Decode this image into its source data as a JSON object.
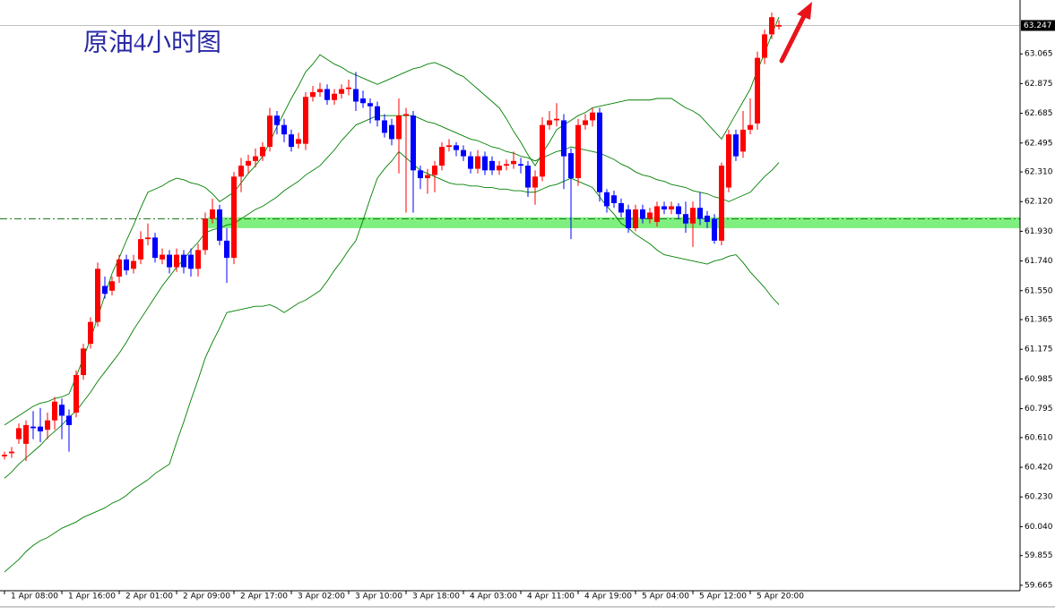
{
  "chart_data": {
    "type": "candlestick",
    "title": "原油4小时图",
    "categories": [
      "1 Apr 08:00",
      null,
      null,
      null,
      null,
      null,
      null,
      null,
      "1 Apr 16:00",
      null,
      null,
      null,
      null,
      null,
      null,
      null,
      "2 Apr 01:00",
      null,
      null,
      null,
      null,
      null,
      null,
      null,
      "2 Apr 09:00",
      null,
      null,
      null,
      null,
      null,
      null,
      null,
      "2 Apr 17:00",
      null,
      null,
      null,
      null,
      null,
      null,
      null,
      "3 Apr 02:00",
      null,
      null,
      null,
      null,
      null,
      null,
      null,
      "3 Apr 10:00",
      null,
      null,
      null,
      null,
      null,
      null,
      null,
      "3 Apr 18:00",
      null,
      null,
      null,
      null,
      null,
      null,
      null,
      "4 Apr 03:00",
      null,
      null,
      null,
      null,
      null,
      null,
      null,
      "4 Apr 11:00",
      null,
      null,
      null,
      null,
      null,
      null,
      null,
      "4 Apr 19:00",
      null,
      null,
      null,
      null,
      null,
      null,
      null,
      "5 Apr 04:00",
      null,
      null,
      null,
      null,
      null,
      null,
      null,
      "5 Apr 12:00",
      null,
      null,
      null,
      null,
      null,
      null,
      null,
      "5 Apr 20:00",
      null,
      null,
      null,
      null
    ],
    "open": [
      60.49,
      60.51,
      60.6,
      60.57,
      60.68,
      60.68,
      60.66,
      60.72,
      60.82,
      60.75,
      60.77,
      61.01,
      61.21,
      61.35,
      61.58,
      61.55,
      61.64,
      61.75,
      61.69,
      61.75,
      61.88,
      61.89,
      61.75,
      61.78,
      61.7,
      61.78,
      61.78,
      61.69,
      61.81,
      62.01,
      62.07,
      61.87,
      61.76,
      62.28,
      62.35,
      62.38,
      62.41,
      62.47,
      62.67,
      62.61,
      62.55,
      62.49,
      62.49,
      62.79,
      62.82,
      62.84,
      62.77,
      62.81,
      62.84,
      62.84,
      62.78,
      62.75,
      62.73,
      62.64,
      62.61,
      62.52,
      62.67,
      62.67,
      62.32,
      62.27,
      62.29,
      62.35,
      62.47,
      62.48,
      62.45,
      62.41,
      62.33,
      62.41,
      62.38,
      62.32,
      62.35,
      62.36,
      62.36,
      62.35,
      62.21,
      62.28,
      62.61,
      62.64,
      62.64,
      62.43,
      62.27,
      62.61,
      62.64,
      62.69,
      62.18,
      62.16,
      62.11,
      62.07,
      61.95,
      62.07,
      62.01,
      61.99,
      62.09,
      62.07,
      62.09,
      62.04,
      61.98,
      62.08,
      62.03,
      62.01,
      61.87,
      62.21,
      62.55,
      62.44,
      62.58,
      62.62,
      63.04,
      63.19,
      63.24
    ],
    "high": [
      60.52,
      60.55,
      60.7,
      60.72,
      60.78,
      60.8,
      60.77,
      60.87,
      60.86,
      60.79,
      61.04,
      61.21,
      61.38,
      61.73,
      61.64,
      61.64,
      61.78,
      61.78,
      61.78,
      61.93,
      61.98,
      61.92,
      61.82,
      61.81,
      61.82,
      61.81,
      61.82,
      61.85,
      62.05,
      62.14,
      62.1,
      61.95,
      62.31,
      62.4,
      62.42,
      62.46,
      62.5,
      62.72,
      62.7,
      62.65,
      62.58,
      62.56,
      62.82,
      62.86,
      62.88,
      62.87,
      62.84,
      62.87,
      62.9,
      62.95,
      62.83,
      62.78,
      62.76,
      62.68,
      62.65,
      62.78,
      62.72,
      62.7,
      62.35,
      62.33,
      62.38,
      62.5,
      62.52,
      62.5,
      62.48,
      62.44,
      62.45,
      62.44,
      62.41,
      62.38,
      62.39,
      62.44,
      62.4,
      62.38,
      62.32,
      62.66,
      62.7,
      62.75,
      62.68,
      62.46,
      62.65,
      62.68,
      62.72,
      62.72,
      62.2,
      62.19,
      62.14,
      62.1,
      62.1,
      62.1,
      62.08,
      62.12,
      62.12,
      62.12,
      62.11,
      62.12,
      62.12,
      62.18,
      62.06,
      62.04,
      62.37,
      62.58,
      62.58,
      62.7,
      62.78,
      63.08,
      63.22,
      63.33,
      63.28
    ],
    "low": [
      60.47,
      60.48,
      60.57,
      60.46,
      60.6,
      60.58,
      60.6,
      60.66,
      60.6,
      60.52,
      60.74,
      60.98,
      61.18,
      61.32,
      61.5,
      61.52,
      61.6,
      61.65,
      61.66,
      61.72,
      61.84,
      61.73,
      61.72,
      61.66,
      61.67,
      61.66,
      61.64,
      61.64,
      61.78,
      61.98,
      61.84,
      61.6,
      61.72,
      62.18,
      62.3,
      62.34,
      62.38,
      62.44,
      62.55,
      62.5,
      62.44,
      62.46,
      62.45,
      62.76,
      62.79,
      62.74,
      62.74,
      62.78,
      62.8,
      62.7,
      62.72,
      62.62,
      62.6,
      62.53,
      62.48,
      62.3,
      62.05,
      62.05,
      62.2,
      62.17,
      62.18,
      62.32,
      62.44,
      62.41,
      62.38,
      62.3,
      62.3,
      62.29,
      62.29,
      62.29,
      62.32,
      62.33,
      62.3,
      62.15,
      62.1,
      62.25,
      62.58,
      62.6,
      62.2,
      61.88,
      62.22,
      62.58,
      62.6,
      62.12,
      62.05,
      62.08,
      62.02,
      61.92,
      61.93,
      61.98,
      61.98,
      61.96,
      62.04,
      62.04,
      62.01,
      61.92,
      61.83,
      61.97,
      61.95,
      61.85,
      61.84,
      62.18,
      62.38,
      62.4,
      62.55,
      62.58,
      63.0,
      63.16,
      63.22
    ],
    "close": [
      60.5,
      60.52,
      60.67,
      60.69,
      60.67,
      60.65,
      60.72,
      60.84,
      60.75,
      60.69,
      61.01,
      61.18,
      61.35,
      61.69,
      61.53,
      61.61,
      61.75,
      61.68,
      61.74,
      61.88,
      61.89,
      61.76,
      61.78,
      61.7,
      61.78,
      61.7,
      61.69,
      61.81,
      62.01,
      62.07,
      61.87,
      61.76,
      62.28,
      62.35,
      62.38,
      62.41,
      62.47,
      62.67,
      62.61,
      62.55,
      62.47,
      62.52,
      62.79,
      62.82,
      62.84,
      62.77,
      62.81,
      62.84,
      62.85,
      62.76,
      62.75,
      62.73,
      62.64,
      62.56,
      62.52,
      62.67,
      62.68,
      62.32,
      62.27,
      62.29,
      62.35,
      62.47,
      62.48,
      62.45,
      62.41,
      62.33,
      62.41,
      62.32,
      62.32,
      62.35,
      62.36,
      62.38,
      62.35,
      62.21,
      62.28,
      62.61,
      62.64,
      62.65,
      62.41,
      62.27,
      62.61,
      62.64,
      62.69,
      62.18,
      62.09,
      62.11,
      62.05,
      61.95,
      62.07,
      62.01,
      62.05,
      62.09,
      62.07,
      62.09,
      62.04,
      61.98,
      62.08,
      62.01,
      61.99,
      61.87,
      62.35,
      62.55,
      62.41,
      62.58,
      62.61,
      63.04,
      63.19,
      63.3,
      63.25
    ],
    "up_color": "#ff0000",
    "down_color": "#0000ff",
    "bands": [
      {
        "color": "#008000",
        "values": [
          60.69,
          60.72,
          60.75,
          60.78,
          60.81,
          60.83,
          60.84,
          60.86,
          60.87,
          60.89,
          61.0,
          61.12,
          61.24,
          61.38,
          61.52,
          61.66,
          61.76,
          61.87,
          61.97,
          62.08,
          62.18,
          62.2,
          62.22,
          62.25,
          62.27,
          62.26,
          62.24,
          62.23,
          62.21,
          62.17,
          62.12,
          62.15,
          62.18,
          62.24,
          62.3,
          62.35,
          62.41,
          62.5,
          62.6,
          62.69,
          62.78,
          62.86,
          62.95,
          63.0,
          63.06,
          63.03,
          63.0,
          62.98,
          62.95,
          62.93,
          62.91,
          62.89,
          62.87,
          62.89,
          62.91,
          62.93,
          62.95,
          62.97,
          62.98,
          63.0,
          63.01,
          62.99,
          62.97,
          62.94,
          62.92,
          62.88,
          62.84,
          62.8,
          62.76,
          62.72,
          62.65,
          62.57,
          62.5,
          62.42,
          62.35,
          62.43,
          62.5,
          62.58,
          62.61,
          62.64,
          62.67,
          62.69,
          62.72,
          62.73,
          62.74,
          62.75,
          62.76,
          62.77,
          62.77,
          62.77,
          62.77,
          62.78,
          62.78,
          62.78,
          62.75,
          62.72,
          62.7,
          62.67,
          62.62,
          62.57,
          62.52,
          62.6,
          62.68,
          62.76,
          62.84,
          62.96,
          63.07,
          63.19,
          63.3
        ]
      },
      {
        "color": "#008000",
        "values": [
          60.35,
          60.39,
          60.44,
          60.48,
          60.52,
          60.56,
          60.61,
          60.65,
          60.69,
          60.74,
          60.78,
          60.84,
          60.9,
          60.97,
          61.03,
          61.09,
          61.15,
          61.22,
          61.3,
          61.37,
          61.44,
          61.51,
          61.58,
          61.64,
          61.7,
          61.75,
          61.81,
          61.86,
          61.92,
          61.94,
          61.95,
          61.97,
          61.98,
          62.01,
          62.04,
          62.07,
          62.09,
          62.12,
          62.15,
          62.19,
          62.22,
          62.25,
          62.29,
          62.32,
          62.35,
          62.4,
          62.45,
          62.51,
          62.56,
          62.61,
          62.63,
          62.65,
          62.67,
          62.67,
          62.67,
          62.67,
          62.67,
          62.67,
          62.65,
          62.63,
          62.62,
          62.6,
          62.58,
          62.56,
          62.54,
          62.52,
          62.51,
          62.49,
          62.47,
          62.46,
          62.44,
          62.43,
          62.41,
          62.4,
          62.38,
          62.4,
          62.42,
          62.44,
          62.45,
          62.47,
          62.46,
          62.45,
          62.44,
          62.43,
          62.41,
          62.39,
          62.36,
          62.34,
          62.31,
          62.29,
          62.28,
          62.26,
          62.25,
          62.23,
          62.22,
          62.21,
          62.19,
          62.18,
          62.17,
          62.15,
          62.14,
          62.12,
          62.14,
          62.16,
          62.18,
          62.23,
          62.28,
          62.32,
          62.37
        ]
      },
      {
        "color": "#008000",
        "values": [
          59.75,
          59.79,
          59.83,
          59.88,
          59.92,
          59.95,
          59.97,
          60.0,
          60.03,
          60.05,
          60.07,
          60.1,
          60.12,
          60.14,
          60.16,
          60.19,
          60.21,
          60.24,
          60.28,
          60.31,
          60.34,
          60.38,
          60.41,
          60.44,
          60.58,
          60.71,
          60.85,
          60.98,
          61.12,
          61.22,
          61.31,
          61.41,
          61.42,
          61.43,
          61.44,
          61.45,
          61.45,
          61.46,
          61.44,
          61.41,
          61.44,
          61.47,
          61.49,
          61.52,
          61.55,
          61.61,
          61.68,
          61.74,
          61.81,
          61.87,
          62.0,
          62.14,
          62.27,
          62.33,
          62.38,
          62.44,
          62.4,
          62.36,
          62.32,
          62.3,
          62.28,
          62.26,
          62.24,
          62.23,
          62.23,
          62.22,
          62.22,
          62.21,
          62.21,
          62.2,
          62.2,
          62.19,
          62.19,
          62.18,
          62.18,
          62.2,
          62.22,
          62.23,
          62.25,
          62.27,
          62.25,
          62.23,
          62.21,
          62.15,
          62.09,
          62.04,
          61.98,
          61.95,
          61.91,
          61.88,
          61.85,
          61.81,
          61.78,
          61.77,
          61.76,
          61.75,
          61.74,
          61.73,
          61.72,
          61.74,
          61.75,
          61.77,
          61.78,
          61.73,
          61.67,
          61.62,
          61.57,
          61.51,
          61.46
        ]
      }
    ],
    "zone": [
      61.95,
      62.02
    ],
    "zone_color": "#7fef7f",
    "hline": 62.01,
    "hline_color": "#1f7a1f",
    "last_price": 63.247,
    "ylim": [
      59.63,
      63.41
    ],
    "yticks": [
      63.065,
      62.875,
      62.685,
      62.495,
      {
        "value": 62.31,
        "label": "62.310"
      },
      {
        "value": 62.12,
        "label": "62.120"
      },
      {
        "value": 61.93,
        "label": "61.930"
      },
      {
        "value": 61.74,
        "label": "61.740"
      },
      {
        "value": 61.55,
        "label": "61.550"
      },
      61.365,
      61.175,
      60.985,
      60.795,
      {
        "value": 60.61,
        "label": "60.610"
      },
      {
        "value": 60.42,
        "label": "60.420"
      },
      {
        "value": 60.23,
        "label": "60.230"
      },
      {
        "value": 60.04,
        "label": "60.040"
      },
      59.855,
      59.665
    ]
  }
}
